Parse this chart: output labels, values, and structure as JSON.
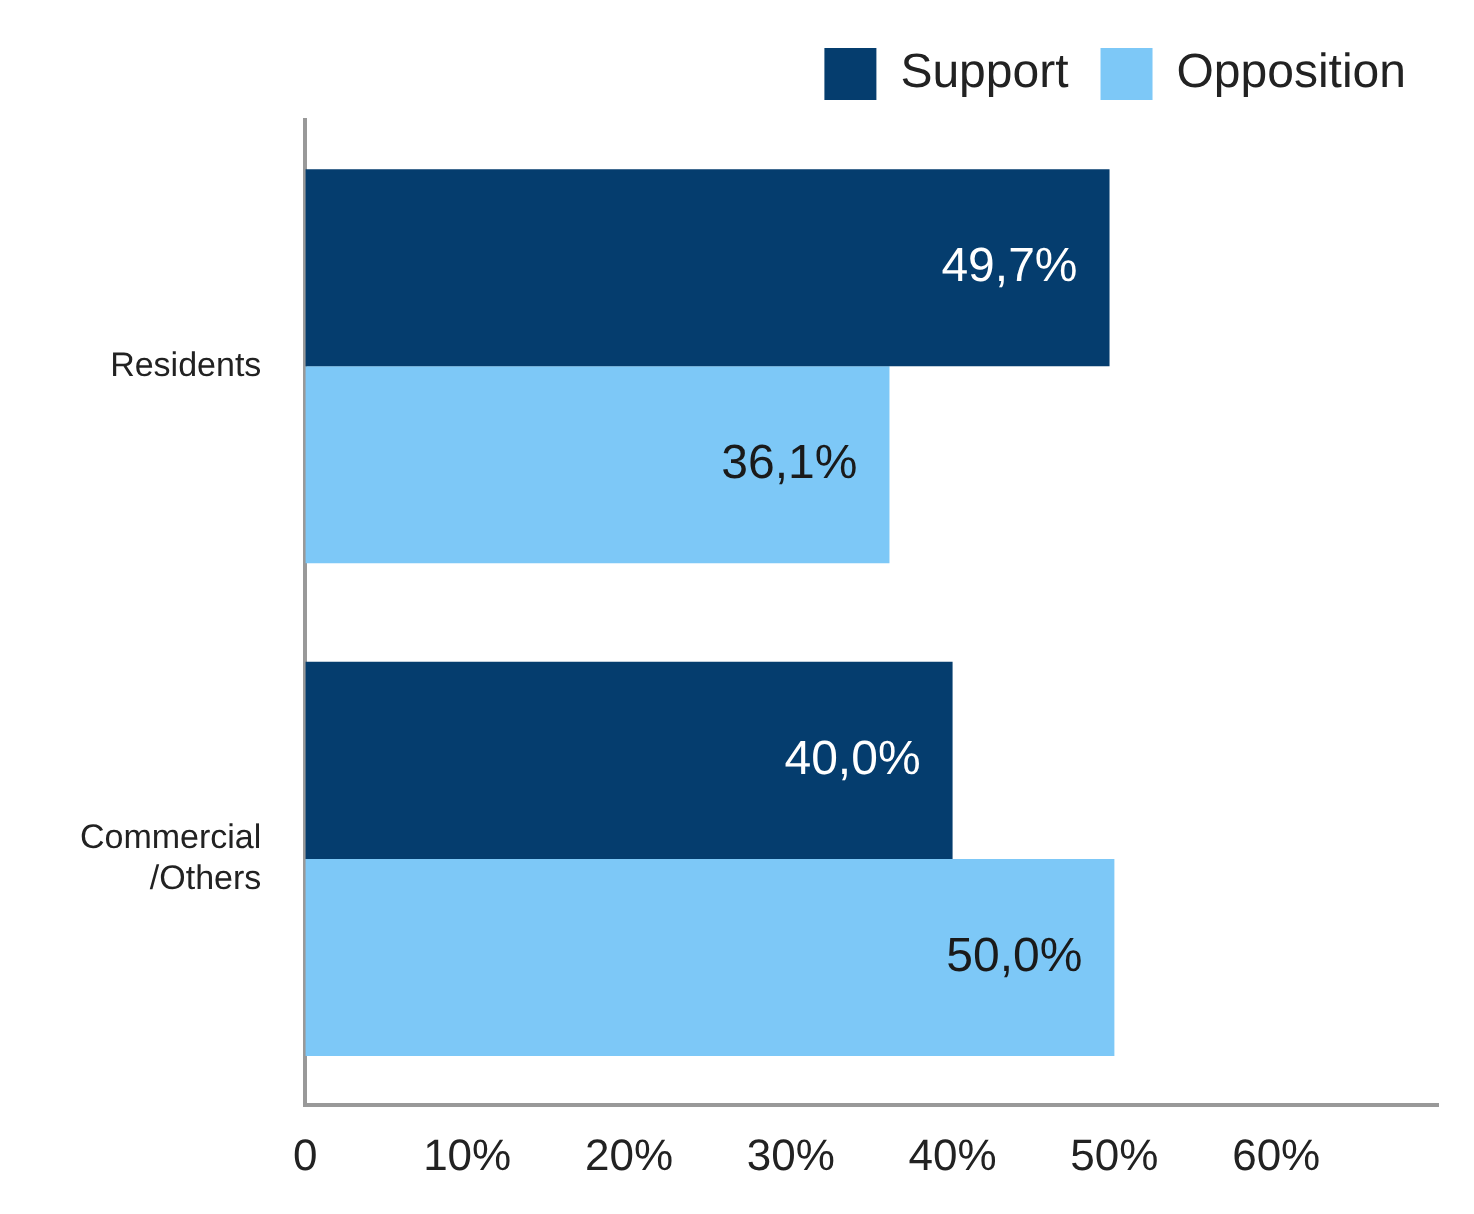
{
  "chart_data": {
    "type": "bar",
    "orientation": "horizontal",
    "categories": [
      "Residents",
      "Commercial\n/Others"
    ],
    "series": [
      {
        "name": "Support",
        "color": "#053d6e",
        "values": [
          49.7,
          40.0
        ],
        "value_labels": [
          "49,7%",
          "40,0%"
        ]
      },
      {
        "name": "Opposition",
        "color": "#7dc8f7",
        "values": [
          36.1,
          50.0
        ],
        "value_labels": [
          "36,1%",
          "50,0%"
        ]
      }
    ],
    "xlim": [
      0,
      70
    ],
    "xticks": [
      {
        "value": 0,
        "label": "0"
      },
      {
        "value": 10,
        "label": "10%"
      },
      {
        "value": 20,
        "label": "20%"
      },
      {
        "value": 30,
        "label": "30%"
      },
      {
        "value": 40,
        "label": "40%"
      },
      {
        "value": 50,
        "label": "50%"
      },
      {
        "value": 60,
        "label": "60%"
      }
    ],
    "grid": false,
    "legend": "top right"
  }
}
